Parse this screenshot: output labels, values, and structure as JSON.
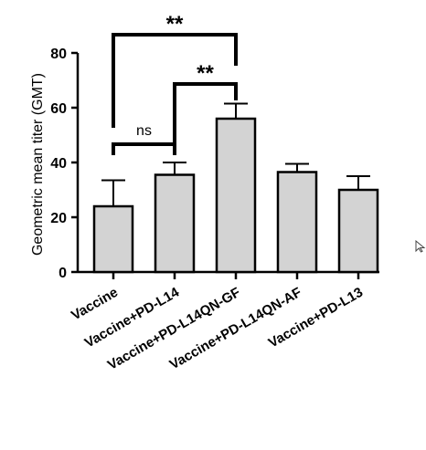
{
  "chart_data": {
    "type": "bar",
    "ylabel": "Geometric mean titer (GMT)",
    "ylim": [
      0,
      80
    ],
    "yticks": [
      0,
      20,
      40,
      60,
      80
    ],
    "categories": [
      "Vaccine",
      "Vaccine+PD-L14",
      "Vaccine+PD-L14QN-GF",
      "Vaccine+PD-L14QN-AF",
      "Vaccine+PD-L13"
    ],
    "values": [
      24,
      35.5,
      56,
      36.5,
      30
    ],
    "errors": [
      9.5,
      4.5,
      5.5,
      3,
      5
    ],
    "bar_color": "#d3d3d3",
    "grid": false,
    "significance": [
      {
        "from": 0,
        "to": 1,
        "label": "ns"
      },
      {
        "from": 1,
        "to": 2,
        "label": "**"
      },
      {
        "from": 0,
        "to": 2,
        "label": "**"
      }
    ]
  },
  "cursor_icon": "mouse-pointer-icon"
}
